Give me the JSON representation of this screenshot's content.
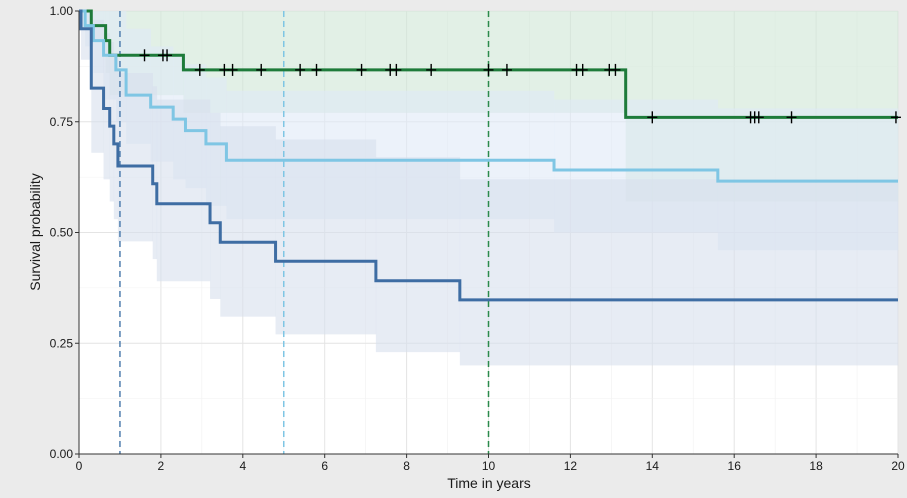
{
  "chart_data": {
    "type": "line",
    "subtype": "kaplan-meier step plot with confidence bands",
    "xlabel": "Time in years",
    "ylabel": "Survival probability",
    "xlim": [
      0,
      20
    ],
    "ylim": [
      0,
      1
    ],
    "x_ticks": [
      "0",
      "2",
      "4",
      "6",
      "8",
      "10",
      "12",
      "14",
      "16",
      "18",
      "20"
    ],
    "y_ticks": [
      "0.00",
      "0.25",
      "0.50",
      "0.75",
      "1.00"
    ],
    "grid": true,
    "legend": "none",
    "reference_lines": [
      {
        "x": 1,
        "color": "#4f7eae"
      },
      {
        "x": 5,
        "color": "#7fc6e4"
      },
      {
        "x": 10,
        "color": "#2a8a4a"
      }
    ],
    "series": [
      {
        "color": "#1e7b3a",
        "band_color": "#cfe6d6",
        "steps": [
          [
            0,
            1.0
          ],
          [
            0.3,
            0.967
          ],
          [
            0.65,
            0.933
          ],
          [
            0.75,
            0.9
          ],
          [
            2.55,
            0.867
          ],
          [
            13.35,
            0.76
          ],
          [
            20,
            0.76
          ]
        ],
        "band_lower": [
          [
            0,
            1.0
          ],
          [
            0.3,
            0.93
          ],
          [
            0.65,
            0.86
          ],
          [
            0.75,
            0.81
          ],
          [
            2.55,
            0.77
          ],
          [
            13.35,
            0.57
          ],
          [
            20,
            0.57
          ]
        ],
        "band_upper": [
          [
            0,
            1.0
          ],
          [
            20,
            1.0
          ]
        ],
        "censored_x": [
          1.6,
          2.05,
          2.15,
          2.95,
          3.55,
          3.75,
          4.45,
          5.4,
          5.8,
          6.9,
          7.6,
          7.75,
          8.6,
          10.0,
          10.45,
          12.15,
          12.3,
          12.95,
          13.1,
          14.0,
          16.4,
          16.5,
          16.6,
          17.4,
          19.95
        ]
      },
      {
        "color": "#7fc6e4",
        "band_color": "#dfeaf6",
        "steps": [
          [
            0,
            1.0
          ],
          [
            0.15,
            0.967
          ],
          [
            0.35,
            0.933
          ],
          [
            0.6,
            0.9
          ],
          [
            0.9,
            0.867
          ],
          [
            1.15,
            0.83
          ],
          [
            1.15,
            0.81
          ],
          [
            1.75,
            0.783
          ],
          [
            2.3,
            0.756
          ],
          [
            2.6,
            0.73
          ],
          [
            3.1,
            0.7
          ],
          [
            3.6,
            0.663
          ],
          [
            11.6,
            0.641
          ],
          [
            15.6,
            0.616
          ],
          [
            20,
            0.616
          ]
        ],
        "band_lower": [
          [
            0,
            1.0
          ],
          [
            0.15,
            0.92
          ],
          [
            0.35,
            0.86
          ],
          [
            0.6,
            0.8
          ],
          [
            0.9,
            0.75
          ],
          [
            1.15,
            0.7
          ],
          [
            1.75,
            0.66
          ],
          [
            2.3,
            0.62
          ],
          [
            2.6,
            0.6
          ],
          [
            3.1,
            0.56
          ],
          [
            3.6,
            0.53
          ],
          [
            11.6,
            0.5
          ],
          [
            15.6,
            0.46
          ],
          [
            20,
            0.46
          ]
        ],
        "band_upper": [
          [
            0,
            1.0
          ],
          [
            1.15,
            0.96
          ],
          [
            1.75,
            0.92
          ],
          [
            2.3,
            0.9
          ],
          [
            2.6,
            0.88
          ],
          [
            3.1,
            0.85
          ],
          [
            3.6,
            0.82
          ],
          [
            11.6,
            0.8
          ],
          [
            15.6,
            0.78
          ],
          [
            20,
            0.78
          ]
        ]
      },
      {
        "color": "#3e6da3",
        "band_color": "#d7e0ec",
        "steps": [
          [
            0,
            1.0
          ],
          [
            0.05,
            0.96
          ],
          [
            0.3,
            0.826
          ],
          [
            0.6,
            0.78
          ],
          [
            0.75,
            0.74
          ],
          [
            0.85,
            0.7
          ],
          [
            0.95,
            0.65
          ],
          [
            1.8,
            0.61
          ],
          [
            1.9,
            0.565
          ],
          [
            3.2,
            0.522
          ],
          [
            3.45,
            0.478
          ],
          [
            4.8,
            0.435
          ],
          [
            7.25,
            0.391
          ],
          [
            9.3,
            0.348
          ],
          [
            20,
            0.348
          ]
        ],
        "band_lower": [
          [
            0,
            1.0
          ],
          [
            0.05,
            0.89
          ],
          [
            0.3,
            0.68
          ],
          [
            0.6,
            0.62
          ],
          [
            0.75,
            0.57
          ],
          [
            0.85,
            0.53
          ],
          [
            0.95,
            0.48
          ],
          [
            1.8,
            0.44
          ],
          [
            1.9,
            0.39
          ],
          [
            3.2,
            0.35
          ],
          [
            3.45,
            0.31
          ],
          [
            4.8,
            0.27
          ],
          [
            7.25,
            0.23
          ],
          [
            9.3,
            0.2
          ],
          [
            20,
            0.2
          ]
        ],
        "band_upper": [
          [
            0,
            1.0
          ],
          [
            0.3,
            0.98
          ],
          [
            0.6,
            0.95
          ],
          [
            0.75,
            0.93
          ],
          [
            0.85,
            0.9
          ],
          [
            0.95,
            0.86
          ],
          [
            1.8,
            0.83
          ],
          [
            1.9,
            0.8
          ],
          [
            3.2,
            0.77
          ],
          [
            3.45,
            0.74
          ],
          [
            4.8,
            0.71
          ],
          [
            7.25,
            0.67
          ],
          [
            9.3,
            0.62
          ],
          [
            20,
            0.62
          ]
        ]
      }
    ]
  }
}
